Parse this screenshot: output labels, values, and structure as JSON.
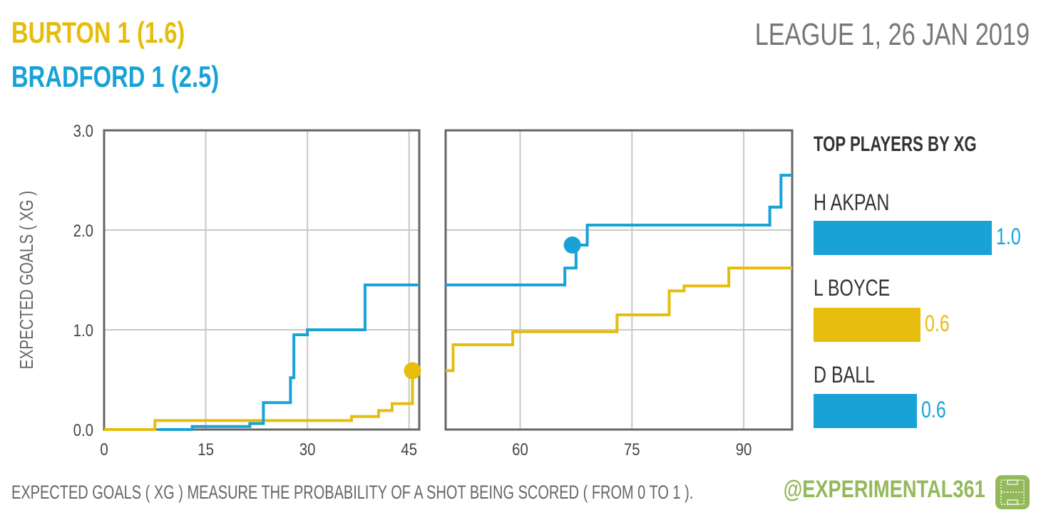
{
  "header": {
    "home_line": "BURTON  1  (1.6)",
    "away_line": "BRADFORD  1  (2.5)",
    "match_line": "LEAGUE 1, 26 JAN 2019"
  },
  "colors": {
    "home": "#e6bd0c",
    "away": "#18a2d6",
    "grid": "#c8c8c8",
    "frame": "#666666",
    "brand": "#93b95a"
  },
  "chart_data": {
    "type": "line",
    "title": "",
    "xlabel": "",
    "ylabel": "EXPECTED GOALS ( XG )",
    "ylim": [
      0,
      3
    ],
    "yticks": [
      "0.0",
      "1.0",
      "2.0",
      "3.0"
    ],
    "panels": [
      {
        "xlim": [
          0,
          46.5
        ],
        "xticks": [
          "0",
          "15",
          "30",
          "45"
        ]
      },
      {
        "xlim": [
          50,
          96.5
        ],
        "xticks": [
          "60",
          "75",
          "90"
        ]
      }
    ],
    "grid": true,
    "step": true,
    "series": [
      {
        "name": "BURTON",
        "color": "#e6bd0c",
        "points": [
          [
            0,
            0.0
          ],
          [
            7.5,
            0.09
          ],
          [
            36.5,
            0.13
          ],
          [
            40.5,
            0.19
          ],
          [
            42.5,
            0.26
          ],
          [
            45.5,
            0.59
          ],
          [
            50,
            0.59
          ],
          [
            51,
            0.85
          ],
          [
            59,
            0.98
          ],
          [
            73,
            1.15
          ],
          [
            80,
            1.39
          ],
          [
            82,
            1.44
          ],
          [
            88,
            1.62
          ],
          [
            96.5,
            1.62
          ]
        ],
        "goals": [
          [
            45.5,
            0.59
          ]
        ]
      },
      {
        "name": "BRADFORD",
        "color": "#18a2d6",
        "points": [
          [
            8,
            0.0
          ],
          [
            13,
            0.03
          ],
          [
            21.5,
            0.06
          ],
          [
            23.5,
            0.27
          ],
          [
            27.5,
            0.52
          ],
          [
            28,
            0.95
          ],
          [
            30,
            1.0
          ],
          [
            38.5,
            1.45
          ],
          [
            46.5,
            1.45
          ],
          [
            50,
            1.45
          ],
          [
            66,
            1.62
          ],
          [
            67.5,
            1.85
          ],
          [
            69,
            2.05
          ],
          [
            93.5,
            2.23
          ],
          [
            95,
            2.55
          ],
          [
            96.5,
            2.55
          ]
        ],
        "goals": [
          [
            67,
            1.85
          ]
        ]
      }
    ]
  },
  "players": {
    "title": "TOP PLAYERS BY XG",
    "items": [
      {
        "name": "H AKPAN",
        "value": "1.0",
        "xg": 1.0,
        "color": "#18a2d6"
      },
      {
        "name": "L BOYCE",
        "value": "0.6",
        "xg": 0.6,
        "color": "#e6bd0c"
      },
      {
        "name": "D BALL",
        "value": "0.6",
        "xg": 0.58,
        "color": "#18a2d6"
      }
    ]
  },
  "footer": {
    "note": "EXPECTED GOALS ( XG ) MEASURE THE PROBABILITY  OF A SHOT BEING SCORED ( FROM 0 TO 1 ).",
    "brand": "@EXPERIMENTAL361",
    "brand_icon": "pitch-icon"
  }
}
